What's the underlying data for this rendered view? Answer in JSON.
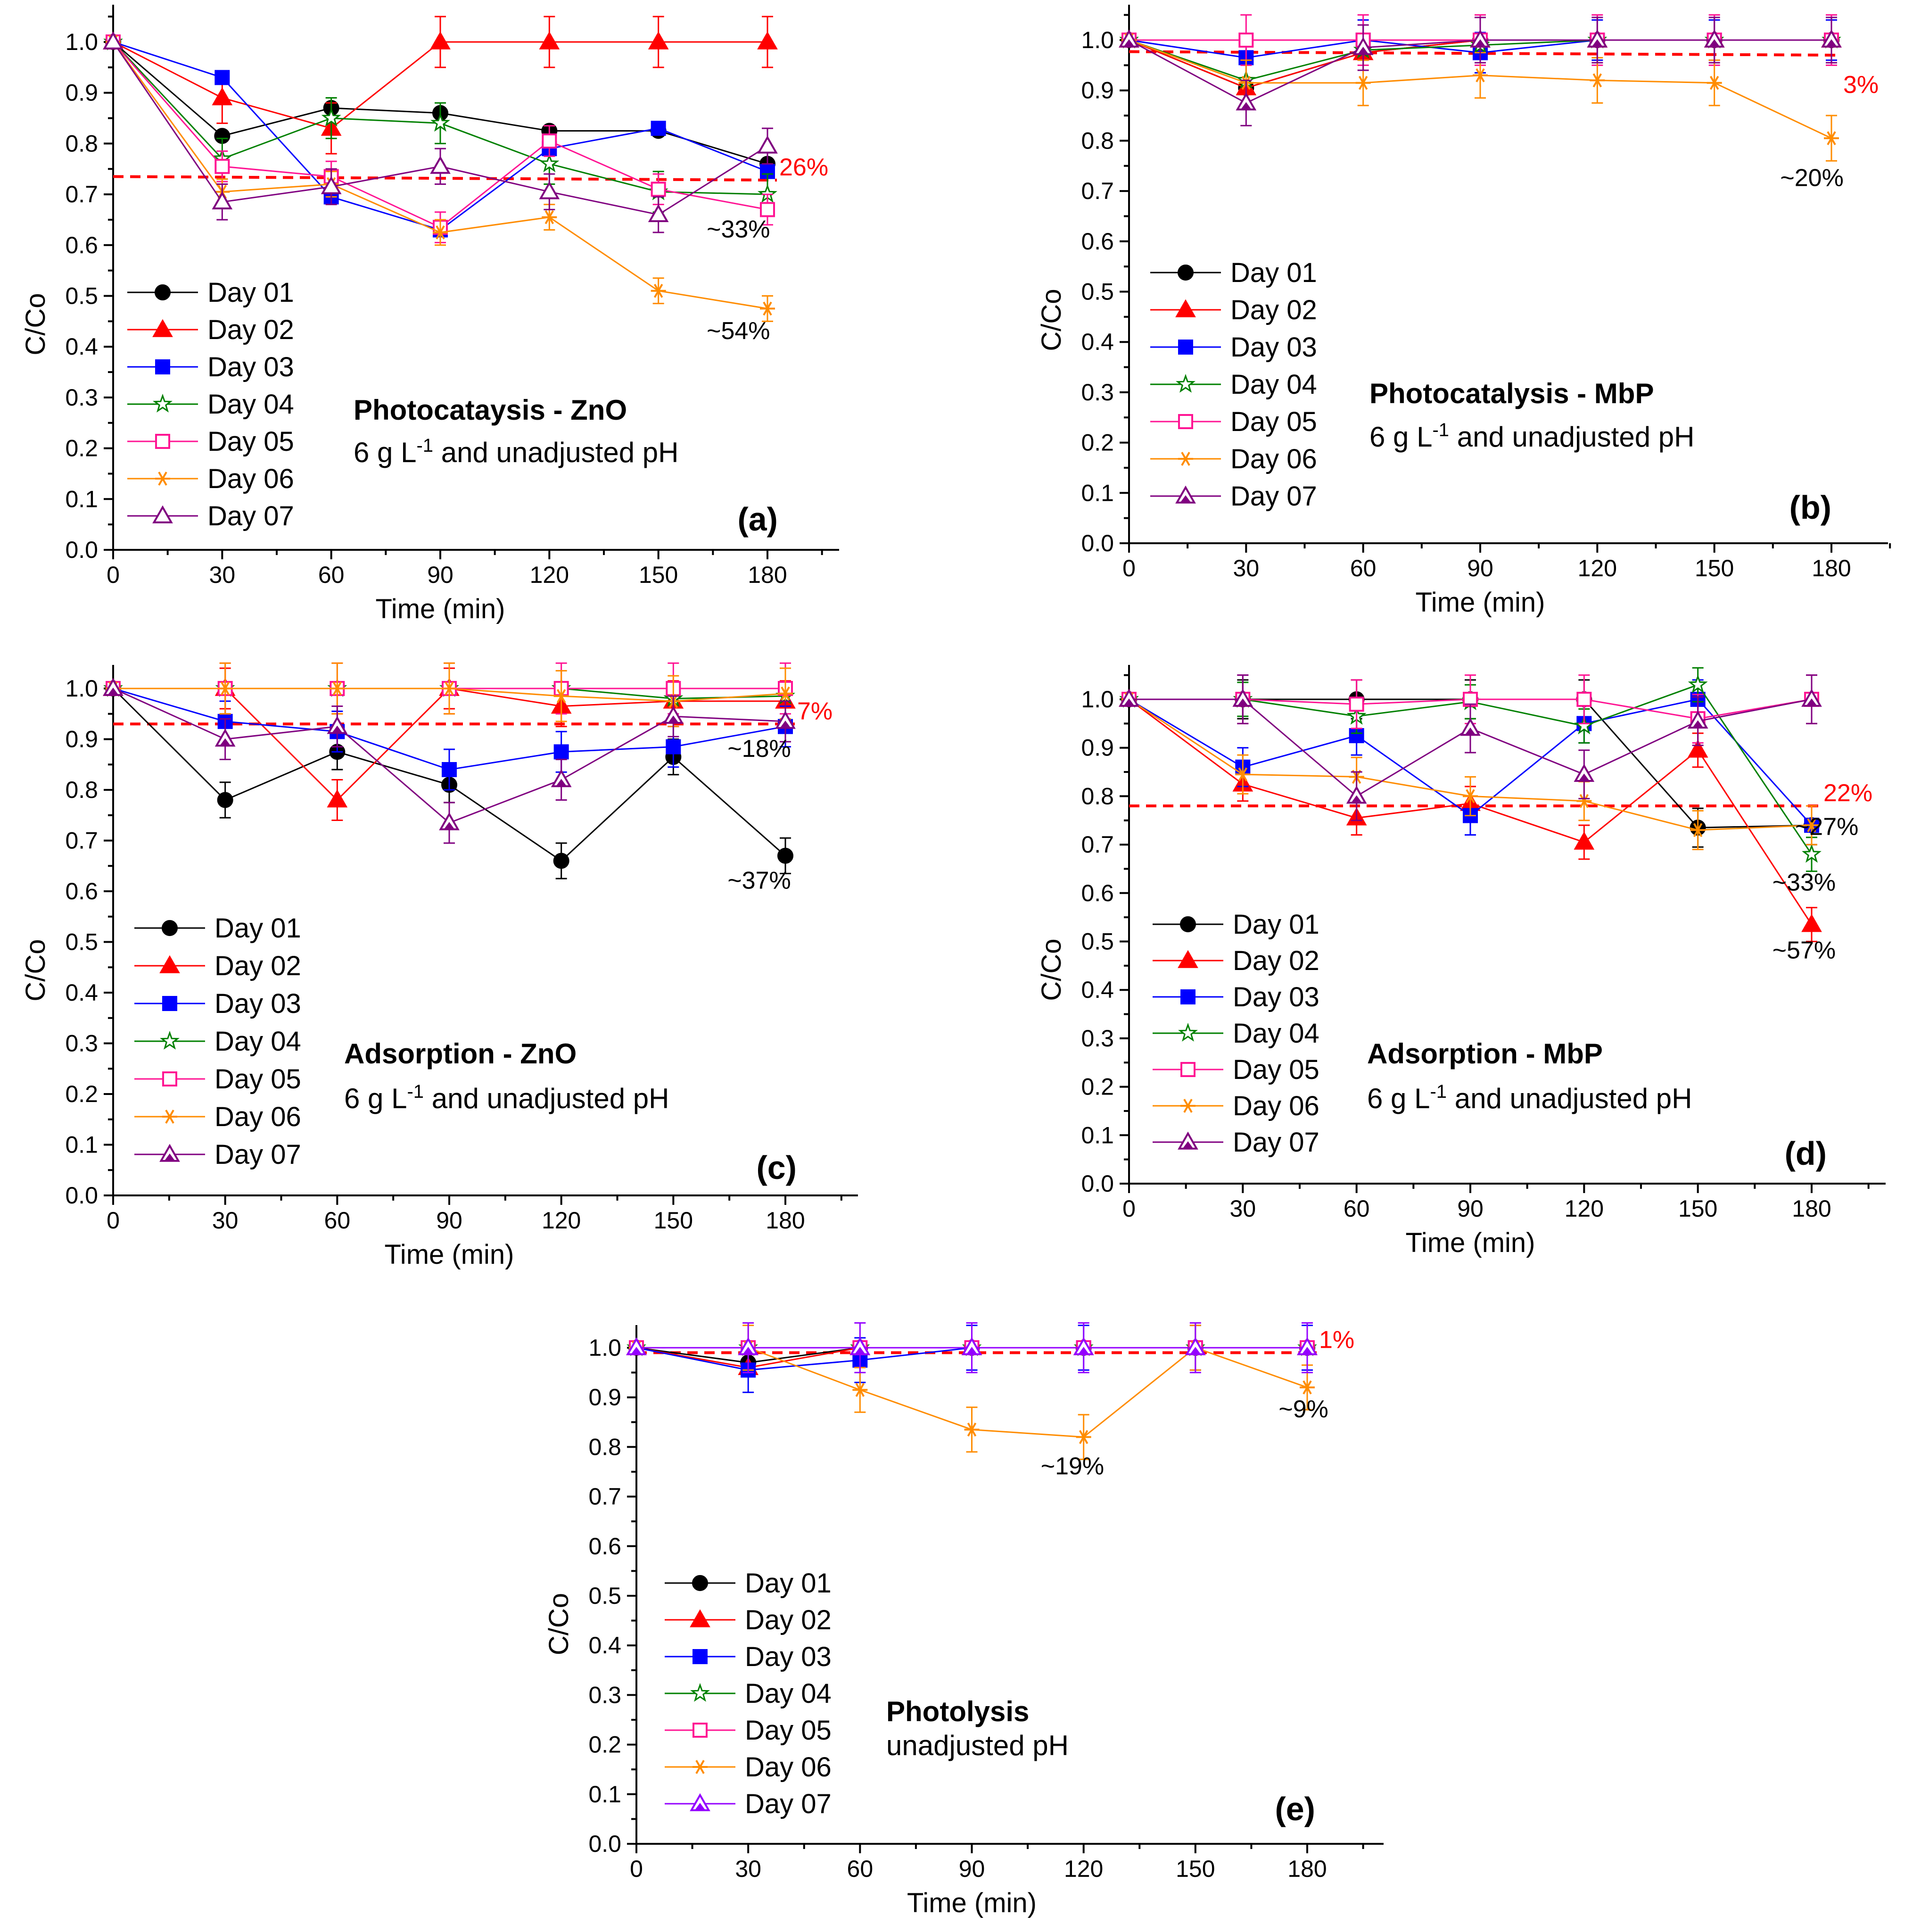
{
  "figure": {
    "legend_days": [
      "Day 01",
      "Day 02",
      "Day 03",
      "Day 04",
      "Day 05",
      "Day 06",
      "Day 07"
    ]
  },
  "colors": {
    "day01": "#000000",
    "day02": "#ff0000",
    "day03": "#0000ff",
    "day04": "#008000",
    "day05": "#ff1493",
    "day06": "#ff8c00",
    "day07": "#800080",
    "day07_violet": "#9400ff",
    "threshold": "#ff0000"
  },
  "chart_data": [
    {
      "id": "a",
      "type": "line",
      "panel_label": "(a)",
      "title": "Photocataysis - ZnO",
      "condition_prefix": "6 g L",
      "condition_sup": "-1",
      "condition_suffix": " and unadjusted pH",
      "xlabel": "Time (min)",
      "ylabel": "C/Co",
      "xlim": [
        0,
        195
      ],
      "ylim": [
        0,
        1.05
      ],
      "x": [
        0,
        30,
        60,
        90,
        120,
        150,
        180
      ],
      "x_ticks": [
        "0",
        "30",
        "60",
        "90",
        "120",
        "150",
        "180"
      ],
      "y_ticks": [
        "0.0",
        "0.1",
        "0.2",
        "0.3",
        "0.4",
        "0.5",
        "0.6",
        "0.7",
        "0.8",
        "0.9",
        "1.0"
      ],
      "legend": "left-middle",
      "threshold": {
        "y_start": 0.735,
        "y_end": 0.728,
        "label": "26%"
      },
      "annotations": [
        {
          "text": "~33%",
          "x": 172,
          "y": 0.615
        },
        {
          "text": "~54%",
          "x": 172,
          "y": 0.415
        }
      ],
      "series": [
        {
          "name": "Day 01",
          "marker": "circle",
          "values": [
            1.0,
            0.815,
            0.87,
            0.86,
            0.825,
            0.825,
            0.76
          ]
        },
        {
          "name": "Day 02",
          "marker": "triangle",
          "values": [
            1.0,
            0.89,
            0.83,
            1.0,
            1.0,
            1.0,
            1.0
          ],
          "err": 0.05
        },
        {
          "name": "Day 03",
          "marker": "square",
          "values": [
            1.0,
            0.93,
            0.695,
            0.63,
            0.79,
            0.83,
            0.745
          ]
        },
        {
          "name": "Day 04",
          "marker": "star",
          "values": [
            1.0,
            0.77,
            0.85,
            0.84,
            0.76,
            0.705,
            0.7
          ],
          "err": 0.04
        },
        {
          "name": "Day 05",
          "marker": "square-open",
          "values": [
            1.0,
            0.755,
            0.735,
            0.635,
            0.805,
            0.71,
            0.67
          ],
          "err": 0.03
        },
        {
          "name": "Day 06",
          "marker": "asterisk",
          "values": [
            1.0,
            0.705,
            0.72,
            0.625,
            0.655,
            0.51,
            0.475
          ],
          "err": 0.025
        },
        {
          "name": "Day 07",
          "marker": "triangle-open",
          "values": [
            1.0,
            0.685,
            0.715,
            0.755,
            0.705,
            0.66,
            0.795
          ],
          "err": 0.035
        }
      ]
    },
    {
      "id": "b",
      "type": "line",
      "panel_label": "(b)",
      "title": "Photocatalysis - MbP",
      "condition_prefix": "6 g L",
      "condition_sup": "-1",
      "condition_suffix": "  and unadjusted pH",
      "xlabel": "Time (min)",
      "ylabel": "C/Co",
      "xlim": [
        0,
        195
      ],
      "ylim": [
        0,
        1.05
      ],
      "x": [
        0,
        30,
        60,
        90,
        120,
        150,
        180
      ],
      "x_ticks": [
        "0",
        "30",
        "60",
        "90",
        "120",
        "150",
        "180"
      ],
      "y_ticks": [
        "0.0",
        "0.1",
        "0.2",
        "0.3",
        "0.4",
        "0.5",
        "0.6",
        "0.7",
        "0.8",
        "0.9",
        "1.0"
      ],
      "legend": "left-middle",
      "threshold": {
        "y_start": 0.977,
        "y_end": 0.97,
        "label": "3%"
      },
      "annotations": [
        {
          "text": "~20%",
          "x": 175,
          "y": 0.71
        }
      ],
      "series": [
        {
          "name": "Day 01",
          "marker": "circle",
          "values": [
            1.0,
            0.905,
            0.975,
            1.0,
            1.0,
            1.0,
            1.0
          ]
        },
        {
          "name": "Day 02",
          "marker": "triangle",
          "values": [
            1.0,
            0.905,
            0.975,
            1.0,
            1.0,
            1.0,
            1.0
          ]
        },
        {
          "name": "Day 03",
          "marker": "square",
          "values": [
            1.0,
            0.965,
            1.0,
            0.975,
            1.0,
            1.0,
            1.0
          ],
          "err": 0.04
        },
        {
          "name": "Day 04",
          "marker": "star",
          "values": [
            1.0,
            0.92,
            0.98,
            0.99,
            1.0,
            1.0,
            1.0
          ]
        },
        {
          "name": "Day 05",
          "marker": "square-open",
          "values": [
            1.0,
            1.0,
            1.0,
            1.0,
            1.0,
            1.0,
            1.0
          ],
          "err": 0.05
        },
        {
          "name": "Day 06",
          "marker": "asterisk",
          "values": [
            1.0,
            0.915,
            0.915,
            0.93,
            0.92,
            0.915,
            0.805
          ],
          "err": 0.045
        },
        {
          "name": "Day 07",
          "marker": "triangle-open-filled",
          "values": [
            1.0,
            0.875,
            0.985,
            1.0,
            1.0,
            1.0,
            1.0
          ],
          "err": 0.045
        }
      ]
    },
    {
      "id": "c",
      "type": "line",
      "panel_label": "(c)",
      "title": "Adsorption - ZnO",
      "condition_prefix": "6 g L",
      "condition_sup": "-1",
      "condition_suffix": " and unadjusted pH",
      "xlabel": "Time (min)",
      "ylabel": "C/Co",
      "xlim": [
        0,
        195
      ],
      "ylim": [
        0,
        1.05
      ],
      "x": [
        0,
        30,
        60,
        90,
        120,
        150,
        180
      ],
      "x_ticks": [
        "0",
        "30",
        "60",
        "90",
        "120",
        "150",
        "180"
      ],
      "y_ticks": [
        "0.0",
        "0.1",
        "0.2",
        "0.3",
        "0.4",
        "0.5",
        "0.6",
        "0.7",
        "0.8",
        "0.9",
        "1.0"
      ],
      "legend": "left-middle",
      "threshold": {
        "y_start": 0.93,
        "y_end": 0.93,
        "label": "7%"
      },
      "annotations": [
        {
          "text": "~18%",
          "x": 173,
          "y": 0.865
        },
        {
          "text": "~37%",
          "x": 173,
          "y": 0.605
        }
      ],
      "series": [
        {
          "name": "Day 01",
          "marker": "circle",
          "values": [
            1.0,
            0.78,
            0.875,
            0.81,
            0.66,
            0.865,
            0.67
          ],
          "err": 0.035
        },
        {
          "name": "Day 02",
          "marker": "triangle",
          "values": [
            1.0,
            1.0,
            0.78,
            1.0,
            0.965,
            0.975,
            0.975
          ],
          "err": 0.04
        },
        {
          "name": "Day 03",
          "marker": "square",
          "values": [
            1.0,
            0.935,
            0.915,
            0.84,
            0.875,
            0.885,
            0.925
          ],
          "err": 0.04
        },
        {
          "name": "Day 04",
          "marker": "star",
          "values": [
            1.0,
            1.0,
            1.0,
            1.0,
            1.0,
            0.98,
            0.985
          ]
        },
        {
          "name": "Day 05",
          "marker": "square-open",
          "values": [
            1.0,
            1.0,
            1.0,
            1.0,
            1.0,
            1.0,
            1.0
          ],
          "err": 0.05
        },
        {
          "name": "Day 06",
          "marker": "asterisk",
          "values": [
            1.0,
            1.0,
            1.0,
            1.0,
            0.985,
            0.975,
            0.99
          ],
          "err": 0.05
        },
        {
          "name": "Day 07",
          "marker": "triangle-open-filled",
          "values": [
            1.0,
            0.9,
            0.925,
            0.735,
            0.82,
            0.945,
            0.935
          ],
          "err": 0.04
        }
      ]
    },
    {
      "id": "d",
      "type": "line",
      "panel_label": "(d)",
      "title": "Adsorption - MbP",
      "condition_prefix": "6 g L",
      "condition_sup": "-1",
      "condition_suffix": " and unadjusted pH",
      "xlabel": "Time (min)",
      "ylabel": "C/Co",
      "xlim": [
        0,
        200
      ],
      "ylim": [
        0,
        1.07
      ],
      "x": [
        0,
        30,
        60,
        90,
        120,
        150,
        180
      ],
      "x_ticks": [
        "0",
        "30",
        "60",
        "90",
        "120",
        "150",
        "180"
      ],
      "y_ticks": [
        "0.0",
        "0.1",
        "0.2",
        "0.3",
        "0.4",
        "0.5",
        "0.6",
        "0.7",
        "0.8",
        "0.9",
        "1.0"
      ],
      "legend": "left-middle",
      "threshold": {
        "y_start": 0.78,
        "y_end": 0.78,
        "label": "22%"
      },
      "annotations": [
        {
          "text": "~27%",
          "x": 184,
          "y": 0.72
        },
        {
          "text": "~33%",
          "x": 178,
          "y": 0.605
        },
        {
          "text": "~57%",
          "x": 178,
          "y": 0.465
        }
      ],
      "series": [
        {
          "name": "Day 01",
          "marker": "circle",
          "values": [
            1.0,
            1.0,
            1.0,
            1.0,
            1.0,
            0.735,
            0.74
          ],
          "err": 0.04
        },
        {
          "name": "Day 02",
          "marker": "triangle",
          "values": [
            1.0,
            0.825,
            0.755,
            0.785,
            0.705,
            0.895,
            0.535
          ],
          "err": 0.035
        },
        {
          "name": "Day 03",
          "marker": "square",
          "values": [
            1.0,
            0.86,
            0.925,
            0.76,
            0.95,
            1.0,
            0.74
          ],
          "err": 0.04
        },
        {
          "name": "Day 04",
          "marker": "star",
          "values": [
            1.0,
            1.0,
            0.965,
            0.995,
            0.945,
            1.03,
            0.68
          ],
          "err": 0.035
        },
        {
          "name": "Day 05",
          "marker": "square-open",
          "values": [
            1.0,
            1.0,
            0.99,
            1.0,
            1.0,
            0.96,
            1.0
          ],
          "err": 0.05
        },
        {
          "name": "Day 06",
          "marker": "asterisk",
          "values": [
            1.0,
            0.845,
            0.84,
            0.8,
            0.79,
            0.73,
            0.74
          ],
          "err": 0.04
        },
        {
          "name": "Day 07",
          "marker": "triangle-open-filled",
          "values": [
            1.0,
            1.0,
            0.8,
            0.94,
            0.845,
            0.955,
            1.0
          ],
          "err": 0.05
        }
      ]
    },
    {
      "id": "e",
      "type": "line",
      "panel_label": "(e)",
      "title": "Photolysis",
      "condition_prefix": "",
      "condition_sup": "",
      "condition_suffix": "unadjusted pH",
      "xlabel": "Time (min)",
      "ylabel": "C/Co",
      "xlim": [
        0,
        195
      ],
      "ylim": [
        0,
        1.05
      ],
      "x": [
        0,
        30,
        60,
        90,
        120,
        150,
        180
      ],
      "x_ticks": [
        "0",
        "30",
        "60",
        "90",
        "120",
        "150",
        "180"
      ],
      "y_ticks": [
        "0.0",
        "0.1",
        "0.2",
        "0.3",
        "0.4",
        "0.5",
        "0.6",
        "0.7",
        "0.8",
        "0.9",
        "1.0"
      ],
      "legend": "left-middle",
      "threshold": {
        "y_start": 0.99,
        "y_end": 0.99,
        "label": "1%"
      },
      "annotations": [
        {
          "text": "~9%",
          "x": 179,
          "y": 0.86
        },
        {
          "text": "~19%",
          "x": 117,
          "y": 0.745
        }
      ],
      "series": [
        {
          "name": "Day 01",
          "marker": "circle",
          "values": [
            1.0,
            0.97,
            1.0,
            1.0,
            1.0,
            1.0,
            1.0
          ]
        },
        {
          "name": "Day 02",
          "marker": "triangle",
          "values": [
            1.0,
            0.96,
            1.0,
            1.0,
            1.0,
            1.0,
            1.0
          ]
        },
        {
          "name": "Day 03",
          "marker": "square",
          "values": [
            1.0,
            0.955,
            0.975,
            1.0,
            1.0,
            1.0,
            1.0
          ],
          "err": 0.045
        },
        {
          "name": "Day 04",
          "marker": "star",
          "values": [
            1.0,
            1.0,
            1.0,
            1.0,
            1.0,
            1.0,
            1.0
          ]
        },
        {
          "name": "Day 05",
          "marker": "square-open",
          "values": [
            1.0,
            1.0,
            1.0,
            1.0,
            1.0,
            1.0,
            1.0
          ]
        },
        {
          "name": "Day 06",
          "marker": "asterisk",
          "values": [
            1.0,
            1.0,
            0.915,
            0.835,
            0.82,
            1.0,
            0.92
          ],
          "err": 0.045
        },
        {
          "name": "Day 07",
          "marker": "triangle-open-violet",
          "values": [
            1.0,
            1.0,
            1.0,
            1.0,
            1.0,
            1.0,
            1.0
          ],
          "err": 0.05
        }
      ]
    }
  ]
}
